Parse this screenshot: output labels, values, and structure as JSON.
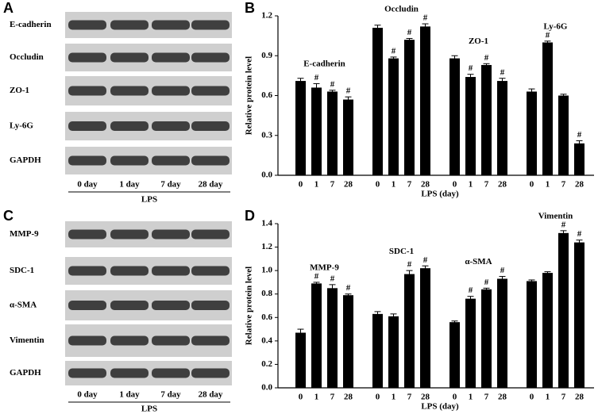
{
  "panel_labels": [
    "A",
    "B",
    "C",
    "D"
  ],
  "blots": [
    {
      "proteins": [
        "E-cadherin",
        "Occludin",
        "ZO-1",
        "Ly-6G",
        "GAPDH"
      ],
      "lanes": [
        "0 day",
        "1 day",
        "7 day",
        "28 day"
      ],
      "treatment": "LPS"
    },
    {
      "proteins": [
        "MMP-9",
        "SDC-1",
        "α-SMA",
        "Vimentin",
        "GAPDH"
      ],
      "lanes": [
        "0 day",
        "1 day",
        "7 day",
        "28 day"
      ],
      "treatment": "LPS"
    }
  ],
  "chart_data": [
    {
      "type": "bar",
      "color": "#000000",
      "y_label": "Relative protein level",
      "x_label": "LPS (day)",
      "categories": [
        "0",
        "1",
        "7",
        "28"
      ],
      "ylim": [
        0,
        1.2
      ],
      "yticks": [
        {
          "value": 0,
          "label": "0.0"
        },
        0.3,
        0.6,
        0.9,
        1.2
      ],
      "groups": [
        {
          "name": "E-cadherin",
          "values": [
            0.71,
            0.66,
            0.63,
            0.57
          ],
          "errors": [
            0.02,
            0.03,
            0.01,
            0.02
          ],
          "markers": [
            null,
            "#",
            "#",
            "#"
          ]
        },
        {
          "name": "Occludin",
          "values": [
            1.11,
            0.88,
            1.02,
            1.12
          ],
          "errors": [
            0.02,
            0.01,
            0.01,
            0.02
          ],
          "markers": [
            null,
            "#",
            "#",
            "#"
          ]
        },
        {
          "name": "ZO-1",
          "values": [
            0.88,
            0.74,
            0.83,
            0.71
          ],
          "errors": [
            0.02,
            0.02,
            0.01,
            0.02
          ],
          "markers": [
            null,
            "#",
            "#",
            "#"
          ]
        },
        {
          "name": "Ly-6G",
          "values": [
            0.63,
            1.0,
            0.6,
            0.24
          ],
          "errors": [
            0.02,
            0.01,
            0.01,
            0.02
          ],
          "markers": [
            null,
            "#",
            null,
            "#"
          ]
        }
      ]
    },
    {
      "type": "bar",
      "color": "#000000",
      "y_label": "Relative protein level",
      "x_label": "LPS (day)",
      "categories": [
        "0",
        "1",
        "7",
        "28"
      ],
      "ylim": [
        0,
        1.4
      ],
      "yticks": [
        {
          "value": 0,
          "label": "0.0"
        },
        0.2,
        0.4,
        0.6,
        0.8,
        {
          "value": 1,
          "label": "1.0"
        },
        1.2,
        1.4
      ],
      "groups": [
        {
          "name": "MMP-9",
          "values": [
            0.47,
            0.89,
            0.85,
            0.79
          ],
          "errors": [
            0.03,
            0.01,
            0.03,
            0.01
          ],
          "markers": [
            null,
            "#",
            "#",
            "#"
          ]
        },
        {
          "name": "SDC-1",
          "values": [
            0.63,
            0.61,
            0.97,
            1.02
          ],
          "errors": [
            0.02,
            0.02,
            0.03,
            0.02
          ],
          "markers": [
            null,
            null,
            "#",
            "#"
          ]
        },
        {
          "name": "α-SMA",
          "values": [
            0.56,
            0.76,
            0.84,
            0.93
          ],
          "errors": [
            0.01,
            0.02,
            0.01,
            0.02
          ],
          "markers": [
            null,
            "#",
            "#",
            "#"
          ]
        },
        {
          "name": "Vimentin",
          "values": [
            0.91,
            0.98,
            1.32,
            1.24
          ],
          "errors": [
            0.01,
            0.01,
            0.02,
            0.02
          ],
          "markers": [
            null,
            null,
            "#",
            "#"
          ]
        }
      ]
    }
  ]
}
